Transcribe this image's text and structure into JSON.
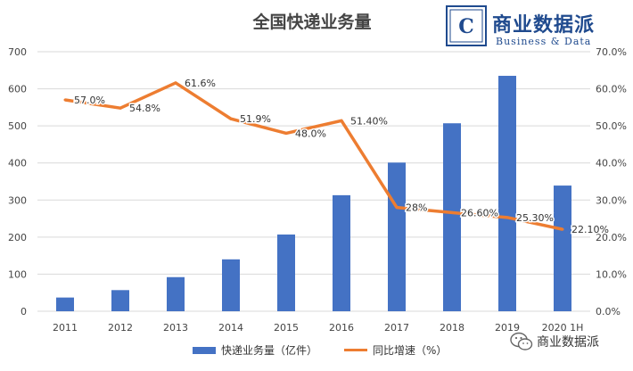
{
  "chart_data": {
    "type": "bar",
    "title": "全国快递业务量",
    "categories": [
      "2011",
      "2012",
      "2013",
      "2014",
      "2015",
      "2016",
      "2017",
      "2018",
      "2019",
      "2020 1H"
    ],
    "series": [
      {
        "name": "快递业务量（亿件）",
        "type": "bar",
        "axis": "left",
        "color": "#4472c4",
        "values": [
          37,
          57,
          92,
          140,
          207,
          313,
          401,
          507,
          635,
          339
        ]
      },
      {
        "name": "同比增速（%）",
        "type": "line",
        "axis": "right",
        "color": "#ed7d31",
        "values": [
          57.0,
          54.8,
          61.6,
          51.9,
          48.0,
          51.4,
          28.0,
          26.6,
          25.3,
          22.1
        ],
        "data_labels": [
          "57.0%",
          "54.8%",
          "61.6%",
          "51.9%",
          "48.0%",
          "51.40%",
          "28%",
          "26.60%",
          "25.30%",
          "22.10%"
        ]
      }
    ],
    "y_left": {
      "range": [
        0,
        700
      ],
      "ticks": [
        "0",
        "100",
        "200",
        "300",
        "400",
        "500",
        "600",
        "700"
      ]
    },
    "y_right": {
      "range": [
        0,
        70
      ],
      "ticks": [
        "0.0%",
        "10.0%",
        "20.0%",
        "30.0%",
        "40.0%",
        "50.0%",
        "60.0%",
        "70.0%"
      ]
    },
    "grid": true,
    "legend_position": "bottom"
  },
  "logo": {
    "title": "商业数据派",
    "subtitle": "Business & Data",
    "mark_letter": "C"
  },
  "watermark": {
    "text": "商业数据派",
    "icon": "wechat-icon"
  }
}
